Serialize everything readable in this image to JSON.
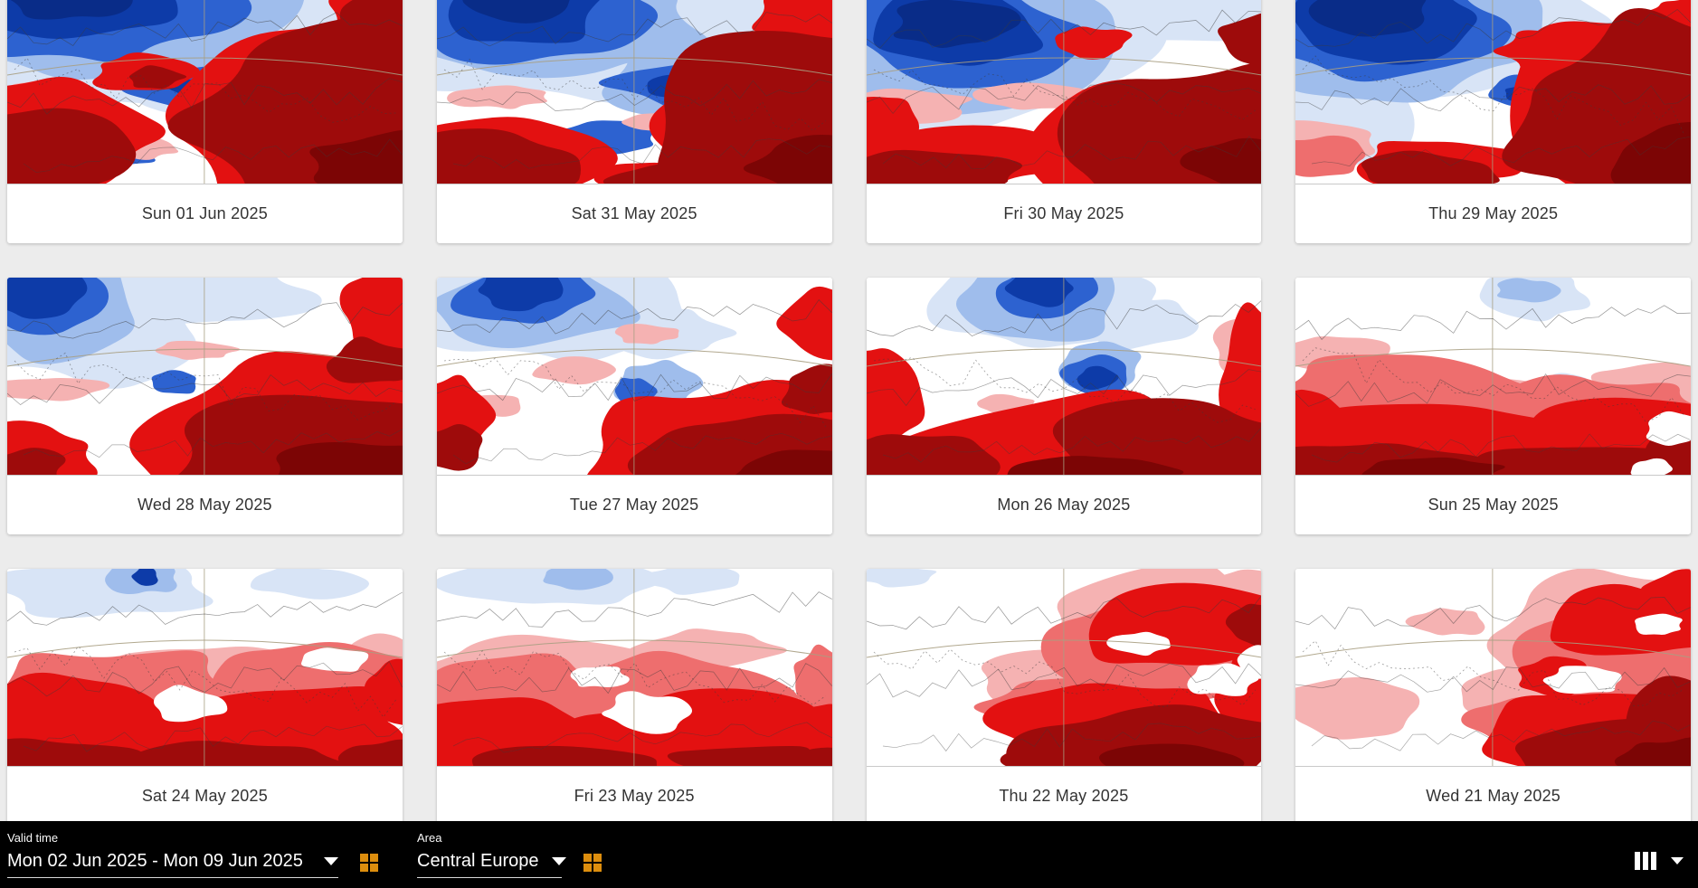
{
  "page": {
    "background_color": "#ececec",
    "card_background": "#ffffff",
    "caption_color": "#333333"
  },
  "cards": [
    {
      "date": "Sun 01 Jun 2025"
    },
    {
      "date": "Sat 31 May 2025"
    },
    {
      "date": "Fri 30 May 2025"
    },
    {
      "date": "Thu 29 May 2025"
    },
    {
      "date": "Wed 28 May 2025"
    },
    {
      "date": "Tue 27 May 2025"
    },
    {
      "date": "Mon 26 May 2025"
    },
    {
      "date": "Sun 25 May 2025"
    },
    {
      "date": "Sat 24 May 2025"
    },
    {
      "date": "Fri 23 May 2025"
    },
    {
      "date": "Thu 22 May 2025"
    },
    {
      "date": "Wed 21 May 2025"
    }
  ],
  "toolbar": {
    "background_color": "#000000",
    "accent_color": "#dd8e0e",
    "valid_time_label": "Valid time",
    "valid_time_value": "Mon 02 Jun 2025 - Mon 09 Jun 2025",
    "area_label": "Area",
    "area_value": "Central Europe",
    "icons": {
      "valid_time_button": "grid-2x2-icon",
      "area_button": "grid-2x2-icon",
      "layout_button": "columns-icon",
      "dropdown": "caret-down-icon"
    }
  },
  "map_palette": {
    "white": "#ffffff",
    "pale_blue": "#d8e4f6",
    "light_blue": "#9fbdec",
    "blue": "#2d62d0",
    "dark_blue": "#0d3ba8",
    "deep_blue": "#092c88",
    "pale_pink": "#fbdcdc",
    "pink": "#f5b2b2",
    "salmon": "#ee6e6e",
    "red": "#e31111",
    "dark_red": "#9e0b0b",
    "deep_red": "#7c0505",
    "coast_line": "#3c3c3c",
    "graticule": "#a89f82"
  }
}
